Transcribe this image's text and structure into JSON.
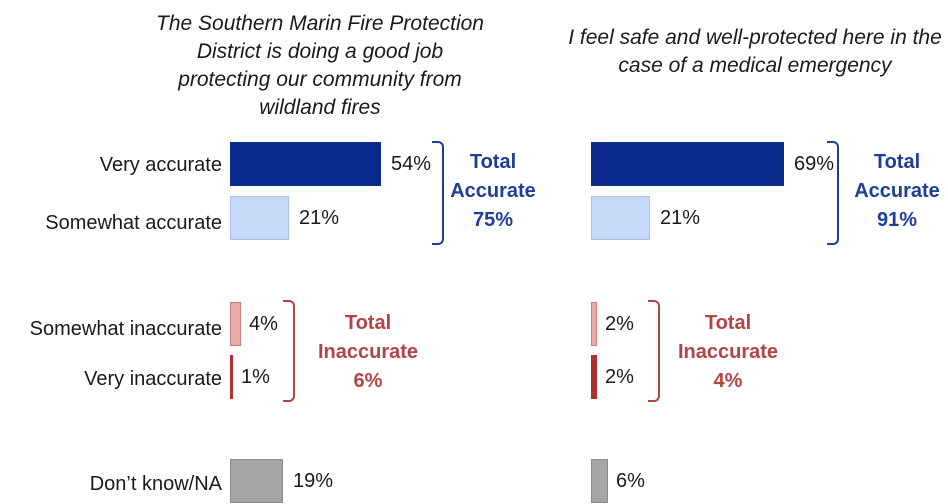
{
  "chart_data": [
    {
      "type": "bar",
      "title": "The Southern Marin Fire Protection District is doing a good job protecting our community from wildland fires",
      "categories": [
        "Very accurate",
        "Somewhat accurate",
        "Somewhat inaccurate",
        "Very inaccurate",
        "Don’t know/NA"
      ],
      "values": [
        54,
        21,
        4,
        1,
        19
      ],
      "value_labels": [
        "54%",
        "21%",
        "4%",
        "1%",
        "19%"
      ],
      "groups": [
        {
          "label_line1": "Total",
          "label_line2": "Accurate",
          "value": "75%",
          "value_num": 75,
          "categories": [
            "Very accurate",
            "Somewhat accurate"
          ],
          "color": "#1f3d99"
        },
        {
          "label_line1": "Total",
          "label_line2": "Inaccurate",
          "value": "6%",
          "value_num": 6,
          "categories": [
            "Somewhat inaccurate",
            "Very inaccurate"
          ],
          "color": "#b44444"
        }
      ],
      "xlim": [
        0,
        100
      ]
    },
    {
      "type": "bar",
      "title": "I feel safe and well-protected here in the case of a medical emergency",
      "categories": [
        "Very accurate",
        "Somewhat accurate",
        "Somewhat inaccurate",
        "Very inaccurate",
        "Don’t know/NA"
      ],
      "values": [
        69,
        21,
        2,
        2,
        6
      ],
      "value_labels": [
        "69%",
        "21%",
        "2%",
        "2%",
        "6%"
      ],
      "groups": [
        {
          "label_line1": "Total",
          "label_line2": "Accurate",
          "value": "91%",
          "value_num": 91,
          "categories": [
            "Very accurate",
            "Somewhat accurate"
          ],
          "color": "#1f3d99"
        },
        {
          "label_line1": "Total",
          "label_line2": "Inaccurate",
          "value": "4%",
          "value_num": 4,
          "categories": [
            "Somewhat inaccurate",
            "Very inaccurate"
          ],
          "color": "#b44444"
        }
      ],
      "xlim": [
        0,
        100
      ]
    }
  ],
  "colors": {
    "very_accurate": "#0a2a8c",
    "somewhat_accurate": "#c6d9f7",
    "somewhat_accurate_border": "#a9c0e6",
    "somewhat_inaccurate": "#eaaaa9",
    "somewhat_inaccurate_border": "#c77e7e",
    "very_inaccurate": "#b1302d",
    "dont_know": "#a6a6a6",
    "dont_know_border": "#8c8c8c",
    "accurate_text": "#1f3d99",
    "inaccurate_text": "#b44444"
  }
}
